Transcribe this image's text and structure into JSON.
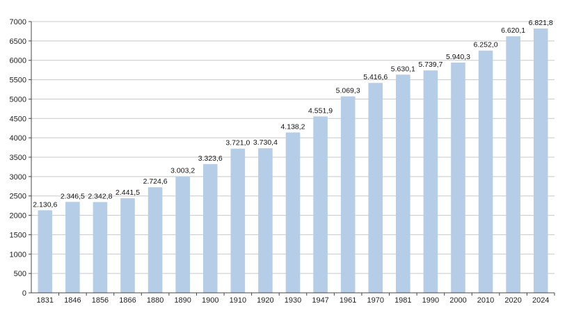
{
  "chart_data": {
    "type": "bar",
    "title": "",
    "xlabel": "",
    "ylabel": "",
    "categories": [
      "1831",
      "1846",
      "1856",
      "1866",
      "1880",
      "1890",
      "1900",
      "1910",
      "1920",
      "1930",
      "1947",
      "1961",
      "1970",
      "1981",
      "1990",
      "2000",
      "2010",
      "2020",
      "2024"
    ],
    "values": [
      2130.6,
      2346.5,
      2342.8,
      2441.5,
      2724.6,
      3003.2,
      3323.6,
      3721.0,
      3730.4,
      4138.2,
      4551.9,
      5069.3,
      5416.6,
      5630.1,
      5739.7,
      5940.3,
      6252.0,
      6620.1,
      6821.8
    ],
    "data_labels": [
      "2.130,6",
      "2.346,5",
      "2.342,8",
      "2.441,5",
      "2.724,6",
      "3.003,2",
      "3.323,6",
      "3.721,0",
      "3.730,4",
      "4.138,2",
      "4.551,9",
      "5.069,3",
      "5.416,6",
      "5.630,1",
      "5.739,7",
      "5.940,3",
      "6.252,0",
      "6.620,1",
      "6.821,8"
    ],
    "ylim": [
      0,
      7000
    ],
    "yticks": [
      0,
      500,
      1000,
      1500,
      2000,
      2500,
      3000,
      3500,
      4000,
      4500,
      5000,
      5500,
      6000,
      6500,
      7000
    ],
    "grid": true,
    "legend": "none",
    "colors": {
      "bar": "#b5cde6",
      "grid": "#c8c8c8",
      "axis": "#444444"
    }
  }
}
